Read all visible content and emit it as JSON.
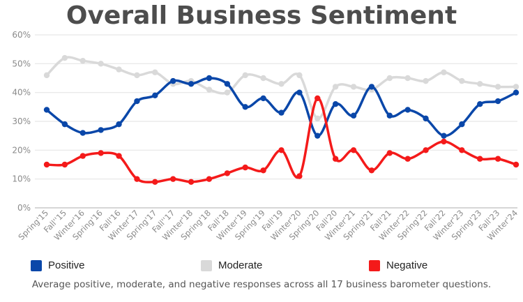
{
  "chart_data": {
    "type": "line",
    "title": "Overall Business Sentiment",
    "caption": "Average positive, moderate, and negative responses across all 17 business barometer questions.",
    "categories": [
      "Spring'15",
      "Fall''15",
      "Winter'16",
      "Spring'16",
      "Fall'16",
      "Winter'17",
      "Spring'17",
      "Fall''17",
      "Winter'18",
      "Spring'18",
      "Fall'18",
      "Winter'19",
      "Spring'19",
      "Fall'19",
      "Winter'20",
      "Spring'20",
      "Fall'20",
      "Winter'21",
      "Spring'21",
      "Fall'21",
      "Winter'22",
      "Spring'22",
      "Fall'22",
      "Winter'23",
      "Spring'23",
      "Fall'23",
      "Winter'24"
    ],
    "ylim": [
      0,
      60
    ],
    "yticks": [
      "0%",
      "10%",
      "20%",
      "30%",
      "40%",
      "50%",
      "60%"
    ],
    "grid": true,
    "legend_position": "bottom",
    "series": [
      {
        "name": "Positive",
        "color": "#0a47a9",
        "values": [
          34,
          29,
          26,
          27,
          29,
          37,
          39,
          44,
          43,
          45,
          43,
          35,
          38,
          33,
          40,
          25,
          36,
          32,
          42,
          32,
          34,
          31,
          25,
          29,
          36,
          37,
          40
        ]
      },
      {
        "name": "Moderate",
        "color": "#d9d9d9",
        "values": [
          46,
          52,
          51,
          50,
          48,
          46,
          47,
          43,
          44,
          41,
          40,
          46,
          45,
          43,
          46,
          31,
          42,
          42,
          41,
          45,
          45,
          44,
          47,
          44,
          43,
          42,
          42
        ]
      },
      {
        "name": "Negative",
        "color": "#f41a1a",
        "values": [
          15,
          15,
          18,
          19,
          18,
          10,
          9,
          10,
          9,
          10,
          12,
          14,
          13,
          20,
          11,
          38,
          17,
          20,
          13,
          19,
          17,
          20,
          23,
          20,
          17,
          17,
          15
        ]
      }
    ]
  }
}
